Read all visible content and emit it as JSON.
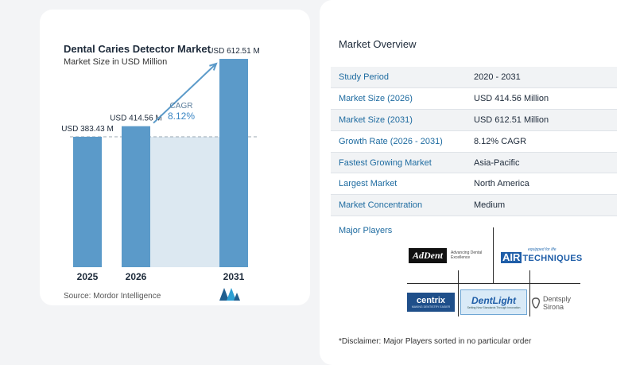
{
  "chart_title": "Dental Caries Detector Market",
  "chart_subtitle": "Market Size in USD Million",
  "source": "Source:  Mordor Intelligence",
  "chart_data": {
    "type": "bar",
    "categories": [
      "2025",
      "2026",
      "2031"
    ],
    "values": [
      383.43,
      414.56,
      612.51
    ],
    "data_labels": [
      "USD 383.43 M",
      "USD 414.56 M",
      "USD 612.51 M"
    ],
    "title": "Dental Caries Detector Market",
    "subtitle": "Market Size in USD Million",
    "xlabel": "",
    "ylabel": "",
    "ylim": [
      0,
      650
    ],
    "annotation": {
      "label": "CAGR",
      "value": "8.12%"
    },
    "reference_line": 383.43,
    "grid": false,
    "colors": {
      "bar": "#5b9ac9",
      "shade": "#dce8f1",
      "arrow": "#5b9ac9",
      "cagr_label": "#5b7e9c",
      "cagr_value": "#3a86c4"
    }
  },
  "overview": {
    "title": "Market Overview",
    "rows": [
      {
        "label": "Study Period",
        "value": "2020 - 2031"
      },
      {
        "label": "Market Size (2026)",
        "value": "USD 414.56 Million"
      },
      {
        "label": "Market Size (2031)",
        "value": "USD 612.51 Million"
      },
      {
        "label": "Growth Rate (2026 - 2031)",
        "value": "8.12% CAGR"
      },
      {
        "label": "Fastest Growing Market",
        "value": "Asia-Pacific"
      },
      {
        "label": "Largest Market",
        "value": "North America"
      },
      {
        "label": "Market Concentration",
        "value": "Medium"
      }
    ]
  },
  "players": {
    "title": "Major Players",
    "adddent": {
      "name": "AdDent",
      "tagline_1": "Advancing Dental",
      "tagline_2": "Excellence"
    },
    "airtech": {
      "name_1": "AIR",
      "name_2": "TECHNIQUES",
      "tagline": "equipped for life"
    },
    "centrix": {
      "name": "centrix",
      "tagline": "MAKING DENTISTRY EASIER"
    },
    "dentlight": {
      "name": "DentLight",
      "tagline": "Setting New Standards Through Innovation"
    },
    "dentsply": {
      "name_1": "Dentsply",
      "name_2": "Sirona"
    }
  },
  "disclaimer": "*Disclaimer: Major Players sorted in no particular order"
}
